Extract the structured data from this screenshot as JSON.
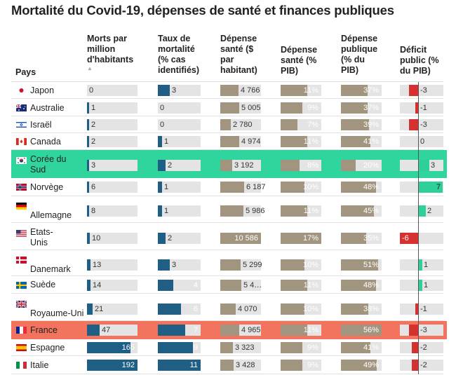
{
  "title": "Mortalité du Covid-19, dépenses de santé et finances publiques",
  "headers": {
    "pays": [
      "Pays"
    ],
    "morts": [
      "Morts par",
      "million",
      "d'habitants"
    ],
    "taux": [
      "Taux de",
      "mortalité",
      "(% cas",
      "identifiés)"
    ],
    "dep_hab": [
      "Dépense",
      "santé ($",
      "par",
      "habitant)"
    ],
    "dep_pib": [
      "Dépense",
      "santé (%",
      "PIB)"
    ],
    "pub": [
      "Dépense",
      "publique",
      "(% du",
      "PIB)"
    ],
    "deficit": [
      "Déficit",
      "public (%",
      "du PIB)"
    ]
  },
  "sort_icon": "▲",
  "colors": {
    "blue": "#1f5f85",
    "gray": "#a1957f",
    "red": "#d5322f",
    "green": "#2fcf9a",
    "track": "#e4e4e4",
    "highlight_korea": "#2fd59c",
    "highlight_france": "#f2735e"
  },
  "chart_data": {
    "type": "table",
    "columns": [
      "Pays",
      "Morts par million d'habitants",
      "Taux de mortalité (% cas identifiés)",
      "Dépense santé ($ par habitant)",
      "Dépense santé (% PIB)",
      "Dépense publique (% du PIB)",
      "Déficit public (% du PIB)"
    ],
    "scales": {
      "morts": [
        0,
        192
      ],
      "taux": [
        0,
        11
      ],
      "dep_hab": [
        0,
        10586
      ],
      "dep_pib": [
        0,
        17
      ],
      "pub": [
        0,
        56
      ],
      "deficit": [
        -6,
        7
      ]
    },
    "rows": [
      {
        "pays": [
          "Japon"
        ],
        "flag": "japan-flag-icon",
        "morts": 0,
        "taux": 3,
        "dep_hab": 4766,
        "dep_hab_label": "4 766",
        "dep_pib": 11,
        "dep_pib_label": "11%",
        "pub": 37,
        "pub_label": "37%",
        "deficit": -3
      },
      {
        "pays": [
          "Australie"
        ],
        "flag": "australia-flag-icon",
        "morts": 1,
        "taux": 0,
        "dep_hab": 5005,
        "dep_hab_label": "5 005",
        "dep_pib": 9,
        "dep_pib_label": "9%",
        "pub": 37,
        "pub_label": "37%",
        "deficit": -1
      },
      {
        "pays": [
          "Israël"
        ],
        "flag": "israel-flag-icon",
        "morts": 2,
        "taux": 0,
        "dep_hab": 2780,
        "dep_hab_label": "2 780",
        "dep_pib": 7,
        "dep_pib_label": "7%",
        "pub": 39,
        "pub_label": "39%",
        "deficit": -3
      },
      {
        "pays": [
          "Canada"
        ],
        "flag": "canada-flag-icon",
        "morts": 2,
        "taux": 1,
        "dep_hab": 4974,
        "dep_hab_label": "4 974",
        "dep_pib": 11,
        "dep_pib_label": "11%",
        "pub": 41,
        "pub_label": "41%",
        "deficit": 0
      },
      {
        "pays": [
          "Corée du",
          "Sud"
        ],
        "flag": "south-korea-flag-icon",
        "highlight": "korea",
        "morts": 3,
        "taux": 2,
        "dep_hab": 3192,
        "dep_hab_label": "3 192",
        "dep_pib": 8,
        "dep_pib_label": "8%",
        "pub": 20,
        "pub_label": "20%",
        "deficit": 3
      },
      {
        "pays": [
          "Norvège"
        ],
        "flag": "norway-flag-icon",
        "morts": 6,
        "taux": 1,
        "dep_hab": 6187,
        "dep_hab_label": "6 187",
        "dep_pib": 10,
        "dep_pib_label": "10%",
        "pub": 48,
        "pub_label": "48%",
        "deficit": 7
      },
      {
        "pays": [
          "",
          "Allemagne"
        ],
        "flag": "germany-flag-icon",
        "morts": 8,
        "taux": 1,
        "dep_hab": 5986,
        "dep_hab_label": "5 986",
        "dep_pib": 11,
        "dep_pib_label": "11%",
        "pub": 45,
        "pub_label": "45%",
        "deficit": 2
      },
      {
        "pays": [
          "Etats-",
          "Unis"
        ],
        "flag": "usa-flag-icon",
        "morts": 10,
        "taux": 2,
        "dep_hab": 10586,
        "dep_hab_label": "10 586",
        "dep_pib": 17,
        "dep_pib_label": "17%",
        "pub": 35,
        "pub_label": "35%",
        "deficit": -6
      },
      {
        "pays": [
          "",
          "Danemark"
        ],
        "flag": "denmark-flag-icon",
        "morts": 13,
        "taux": 3,
        "dep_hab": 5299,
        "dep_hab_label": "5 299",
        "dep_pib": 10,
        "dep_pib_label": "10%",
        "pub": 51,
        "pub_label": "51%",
        "deficit": 1
      },
      {
        "pays": [
          "Suède"
        ],
        "flag": "sweden-flag-icon",
        "morts": 14,
        "taux": 4,
        "dep_hab": 5447,
        "dep_hab_label": "5 4…",
        "dep_pib": 11,
        "dep_pib_label": "11%",
        "pub": 48,
        "pub_label": "48%",
        "deficit": 1
      },
      {
        "pays": [
          "",
          "Royaume-Uni"
        ],
        "flag": "uk-flag-icon",
        "morts": 21,
        "taux": 6,
        "dep_hab": 4070,
        "dep_hab_label": "4 070",
        "dep_pib": 10,
        "dep_pib_label": "10%",
        "pub": 38,
        "pub_label": "38%",
        "deficit": -1
      },
      {
        "pays": [
          "France"
        ],
        "flag": "france-flag-icon",
        "highlight": "france",
        "morts": 47,
        "taux": 7,
        "dep_hab": 4965,
        "dep_hab_label": "4 965",
        "dep_pib": 11,
        "dep_pib_label": "11%",
        "pub": 56,
        "pub_label": "56%",
        "deficit": -3
      },
      {
        "pays": [
          "Espagne"
        ],
        "flag": "spain-flag-icon",
        "morts": 165,
        "taux": 9,
        "dep_hab": 3323,
        "dep_hab_label": "3 323",
        "dep_pib": 9,
        "dep_pib_label": "9%",
        "pub": 41,
        "pub_label": "41%",
        "deficit": -2
      },
      {
        "pays": [
          "Italie"
        ],
        "flag": "italy-flag-icon",
        "morts": 192,
        "taux": 11,
        "dep_hab": 3428,
        "dep_hab_label": "3 428",
        "dep_pib": 9,
        "dep_pib_label": "9%",
        "pub": 49,
        "pub_label": "49%",
        "deficit": -2
      }
    ]
  }
}
